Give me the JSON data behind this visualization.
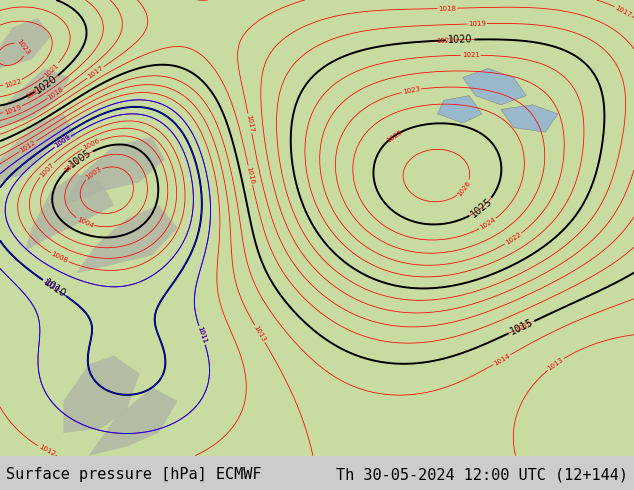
{
  "title_left": "Surface pressure [hPa] ECMWF",
  "title_right": "Th 30-05-2024 12:00 UTC (12+144)",
  "bg_color": "#c8dba0",
  "footer_bg": "#cccccc",
  "footer_text_color": "#000000",
  "footer_fontsize": 11,
  "fig_width": 6.34,
  "fig_height": 4.9,
  "dpi": 100
}
